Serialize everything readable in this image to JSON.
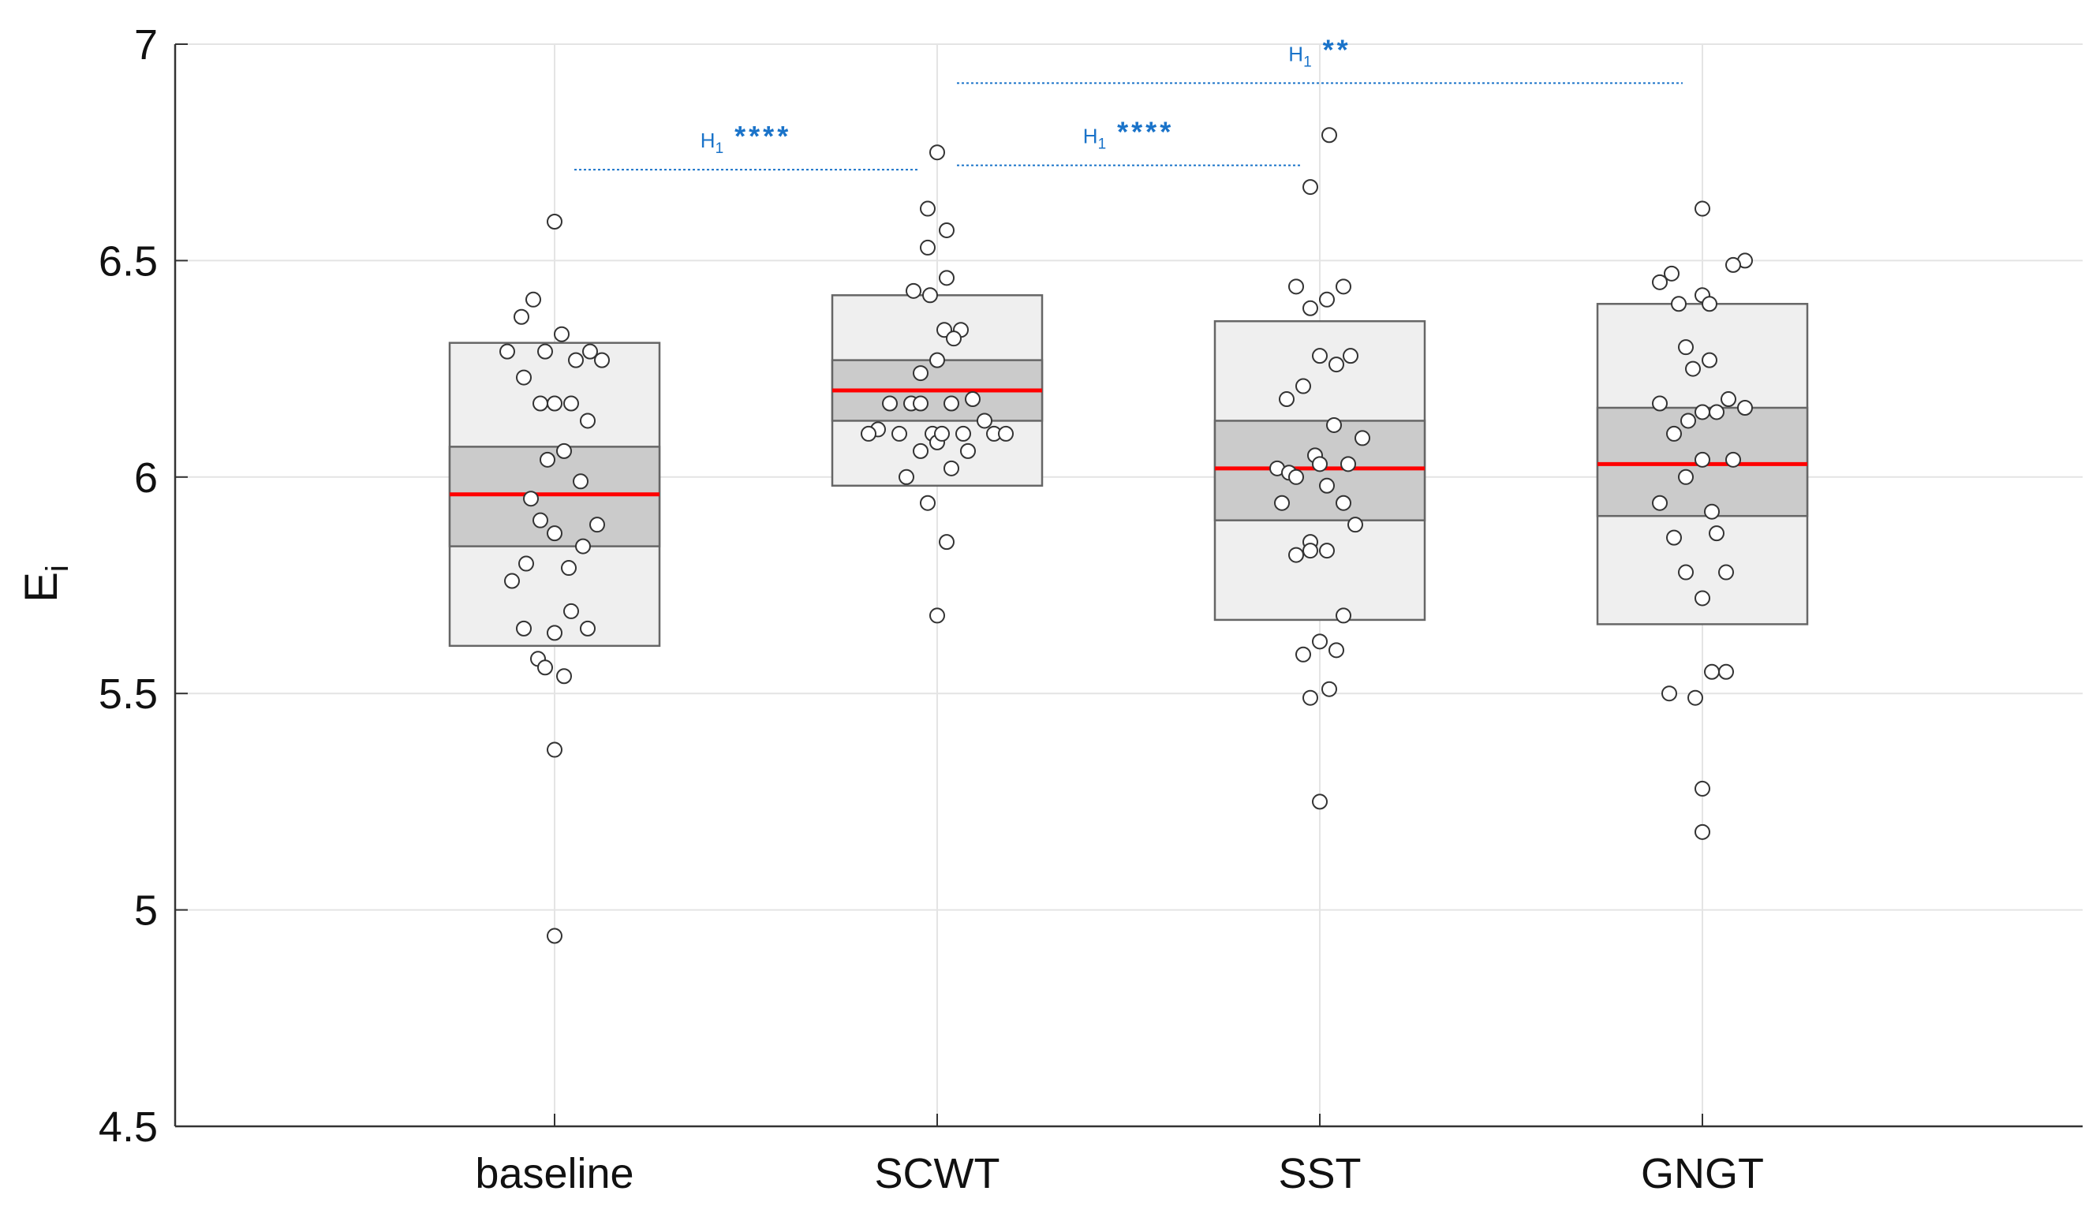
{
  "chart_data": {
    "type": "box",
    "title": "",
    "xlabel": "",
    "ylabel": "E",
    "ylabel_subscript": "i",
    "ylim": [
      4.5,
      7
    ],
    "yticks": [
      4.5,
      5,
      5.5,
      6,
      6.5,
      7
    ],
    "ytick_labels": [
      "4.5",
      "5",
      "5.5",
      "6",
      "6.5",
      "7"
    ],
    "grid": true,
    "categories": [
      "baseline",
      "SCWT",
      "SST",
      "GNGT"
    ],
    "colors": {
      "box_fill": "#efefef",
      "band_fill": "#cbcbcb",
      "box_edge": "#666666",
      "median": "#ff0000",
      "points": "#ffffff",
      "annotation": "#1a73c9",
      "grid": "#e4e4e4",
      "axis": "#333333"
    },
    "groups": [
      {
        "name": "baseline",
        "box_low": 5.61,
        "box_high": 6.31,
        "band_low": 5.84,
        "band_high": 6.07,
        "median": 5.96,
        "points": [
          {
            "dx": -0.2,
            "y": 6.29
          },
          {
            "dx": -0.14,
            "y": 6.37
          },
          {
            "dx": -0.09,
            "y": 6.41
          },
          {
            "dx": -0.04,
            "y": 6.29
          },
          {
            "dx": 0.03,
            "y": 6.33
          },
          {
            "dx": 0.09,
            "y": 6.27
          },
          {
            "dx": 0.15,
            "y": 6.29
          },
          {
            "dx": 0.2,
            "y": 6.27
          },
          {
            "dx": -0.13,
            "y": 6.23
          },
          {
            "dx": -0.06,
            "y": 6.17
          },
          {
            "dx": 0.0,
            "y": 6.17
          },
          {
            "dx": 0.07,
            "y": 6.17
          },
          {
            "dx": 0.14,
            "y": 6.13
          },
          {
            "dx": -0.03,
            "y": 6.04
          },
          {
            "dx": 0.04,
            "y": 6.06
          },
          {
            "dx": 0.11,
            "y": 5.99
          },
          {
            "dx": -0.1,
            "y": 5.95
          },
          {
            "dx": -0.06,
            "y": 5.9
          },
          {
            "dx": 0.0,
            "y": 5.87
          },
          {
            "dx": 0.18,
            "y": 5.89
          },
          {
            "dx": 0.12,
            "y": 5.84
          },
          {
            "dx": -0.12,
            "y": 5.8
          },
          {
            "dx": -0.18,
            "y": 5.76
          },
          {
            "dx": 0.06,
            "y": 5.79
          },
          {
            "dx": 0.07,
            "y": 5.69
          },
          {
            "dx": -0.13,
            "y": 5.65
          },
          {
            "dx": 0.0,
            "y": 5.64
          },
          {
            "dx": 0.14,
            "y": 5.65
          },
          {
            "dx": -0.07,
            "y": 5.58
          },
          {
            "dx": -0.04,
            "y": 5.56
          },
          {
            "dx": 0.04,
            "y": 5.54
          },
          {
            "dx": 0.0,
            "y": 5.37
          },
          {
            "dx": 0.0,
            "y": 4.94
          },
          {
            "dx": 0.0,
            "y": 6.59
          }
        ]
      },
      {
        "name": "SCWT",
        "box_low": 5.98,
        "box_high": 6.42,
        "band_low": 6.13,
        "band_high": 6.27,
        "median": 6.2,
        "points": [
          {
            "dx": 0.0,
            "y": 6.75
          },
          {
            "dx": -0.04,
            "y": 6.62
          },
          {
            "dx": 0.04,
            "y": 6.57
          },
          {
            "dx": -0.04,
            "y": 6.53
          },
          {
            "dx": 0.04,
            "y": 6.46
          },
          {
            "dx": -0.1,
            "y": 6.43
          },
          {
            "dx": -0.03,
            "y": 6.42
          },
          {
            "dx": 0.03,
            "y": 6.34
          },
          {
            "dx": 0.1,
            "y": 6.34
          },
          {
            "dx": 0.07,
            "y": 6.32
          },
          {
            "dx": 0.0,
            "y": 6.27
          },
          {
            "dx": -0.07,
            "y": 6.24
          },
          {
            "dx": -0.2,
            "y": 6.17
          },
          {
            "dx": -0.11,
            "y": 6.17
          },
          {
            "dx": -0.07,
            "y": 6.17
          },
          {
            "dx": 0.06,
            "y": 6.17
          },
          {
            "dx": 0.15,
            "y": 6.18
          },
          {
            "dx": 0.2,
            "y": 6.13
          },
          {
            "dx": -0.25,
            "y": 6.11
          },
          {
            "dx": -0.29,
            "y": 6.1
          },
          {
            "dx": -0.16,
            "y": 6.1
          },
          {
            "dx": -0.02,
            "y": 6.1
          },
          {
            "dx": 0.0,
            "y": 6.08
          },
          {
            "dx": 0.02,
            "y": 6.1
          },
          {
            "dx": 0.11,
            "y": 6.1
          },
          {
            "dx": 0.24,
            "y": 6.1
          },
          {
            "dx": 0.29,
            "y": 6.1
          },
          {
            "dx": -0.07,
            "y": 6.06
          },
          {
            "dx": 0.13,
            "y": 6.06
          },
          {
            "dx": 0.06,
            "y": 6.02
          },
          {
            "dx": -0.13,
            "y": 6.0
          },
          {
            "dx": -0.04,
            "y": 5.94
          },
          {
            "dx": 0.04,
            "y": 5.85
          },
          {
            "dx": 0.0,
            "y": 5.68
          }
        ]
      },
      {
        "name": "SST",
        "box_low": 5.67,
        "box_high": 6.36,
        "band_low": 5.9,
        "band_high": 6.13,
        "median": 6.02,
        "points": [
          {
            "dx": 0.04,
            "y": 6.79
          },
          {
            "dx": -0.04,
            "y": 6.67
          },
          {
            "dx": -0.1,
            "y": 6.44
          },
          {
            "dx": 0.1,
            "y": 6.44
          },
          {
            "dx": 0.03,
            "y": 6.41
          },
          {
            "dx": -0.04,
            "y": 6.39
          },
          {
            "dx": 0.0,
            "y": 6.28
          },
          {
            "dx": 0.07,
            "y": 6.26
          },
          {
            "dx": 0.13,
            "y": 6.28
          },
          {
            "dx": -0.07,
            "y": 6.21
          },
          {
            "dx": -0.14,
            "y": 6.18
          },
          {
            "dx": 0.06,
            "y": 6.12
          },
          {
            "dx": 0.18,
            "y": 6.09
          },
          {
            "dx": -0.02,
            "y": 6.05
          },
          {
            "dx": -0.18,
            "y": 6.02
          },
          {
            "dx": -0.13,
            "y": 6.01
          },
          {
            "dx": -0.1,
            "y": 6.0
          },
          {
            "dx": 0.0,
            "y": 6.03
          },
          {
            "dx": 0.12,
            "y": 6.03
          },
          {
            "dx": 0.03,
            "y": 5.98
          },
          {
            "dx": -0.16,
            "y": 5.94
          },
          {
            "dx": 0.1,
            "y": 5.94
          },
          {
            "dx": 0.15,
            "y": 5.89
          },
          {
            "dx": -0.04,
            "y": 5.85
          },
          {
            "dx": -0.1,
            "y": 5.82
          },
          {
            "dx": -0.04,
            "y": 5.83
          },
          {
            "dx": 0.03,
            "y": 5.83
          },
          {
            "dx": 0.1,
            "y": 5.68
          },
          {
            "dx": 0.0,
            "y": 5.62
          },
          {
            "dx": -0.07,
            "y": 5.59
          },
          {
            "dx": 0.07,
            "y": 5.6
          },
          {
            "dx": 0.04,
            "y": 5.51
          },
          {
            "dx": -0.04,
            "y": 5.49
          },
          {
            "dx": 0.0,
            "y": 5.25
          }
        ]
      },
      {
        "name": "GNGT",
        "box_low": 5.66,
        "box_high": 6.4,
        "band_low": 5.91,
        "band_high": 6.16,
        "median": 6.03,
        "points": [
          {
            "dx": 0.0,
            "y": 6.62
          },
          {
            "dx": 0.18,
            "y": 6.5
          },
          {
            "dx": 0.13,
            "y": 6.49
          },
          {
            "dx": -0.18,
            "y": 6.45
          },
          {
            "dx": -0.13,
            "y": 6.47
          },
          {
            "dx": -0.1,
            "y": 6.4
          },
          {
            "dx": 0.0,
            "y": 6.42
          },
          {
            "dx": 0.03,
            "y": 6.4
          },
          {
            "dx": -0.07,
            "y": 6.3
          },
          {
            "dx": 0.03,
            "y": 6.27
          },
          {
            "dx": -0.04,
            "y": 6.25
          },
          {
            "dx": 0.0,
            "y": 6.15
          },
          {
            "dx": 0.06,
            "y": 6.15
          },
          {
            "dx": 0.11,
            "y": 6.18
          },
          {
            "dx": -0.18,
            "y": 6.17
          },
          {
            "dx": 0.18,
            "y": 6.16
          },
          {
            "dx": -0.06,
            "y": 6.13
          },
          {
            "dx": -0.12,
            "y": 6.1
          },
          {
            "dx": 0.0,
            "y": 6.04
          },
          {
            "dx": 0.13,
            "y": 6.04
          },
          {
            "dx": -0.07,
            "y": 6.0
          },
          {
            "dx": -0.18,
            "y": 5.94
          },
          {
            "dx": 0.04,
            "y": 5.92
          },
          {
            "dx": -0.12,
            "y": 5.86
          },
          {
            "dx": 0.06,
            "y": 5.87
          },
          {
            "dx": -0.07,
            "y": 5.78
          },
          {
            "dx": 0.1,
            "y": 5.78
          },
          {
            "dx": 0.0,
            "y": 5.72
          },
          {
            "dx": 0.04,
            "y": 5.55
          },
          {
            "dx": 0.1,
            "y": 5.55
          },
          {
            "dx": -0.14,
            "y": 5.5
          },
          {
            "dx": -0.03,
            "y": 5.49
          },
          {
            "dx": 0.0,
            "y": 5.28
          },
          {
            "dx": 0.0,
            "y": 5.18
          }
        ]
      }
    ],
    "annotations": [
      {
        "from": 0,
        "to": 1,
        "y": 6.71,
        "label": "H",
        "label_sub": "1",
        "stars": "****"
      },
      {
        "from": 1,
        "to": 2,
        "y": 6.72,
        "label": "H",
        "label_sub": "1",
        "stars": "****"
      },
      {
        "from": 1,
        "to": 3,
        "y": 6.91,
        "label": "H",
        "label_sub": "1",
        "stars": "**"
      }
    ]
  }
}
